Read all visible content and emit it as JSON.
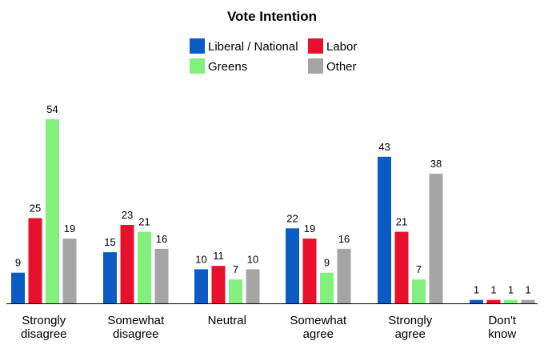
{
  "chart_data": {
    "type": "bar",
    "title": "Vote Intention",
    "legend_position": "top-center",
    "grid": false,
    "ylim": [
      0,
      60
    ],
    "categories": [
      [
        "Strongly",
        "disagree"
      ],
      [
        "Somewhat",
        "disagree"
      ],
      [
        "Neutral"
      ],
      [
        "Somewhat",
        "agree"
      ],
      [
        "Strongly",
        "agree"
      ],
      [
        "Don't",
        "know"
      ]
    ],
    "series": [
      {
        "name": "Liberal / National",
        "color": "#0a5bc4",
        "values": [
          9,
          15,
          10,
          22,
          43,
          1
        ]
      },
      {
        "name": "Labor",
        "color": "#e8112d",
        "values": [
          25,
          23,
          11,
          19,
          21,
          1
        ]
      },
      {
        "name": "Greens",
        "color": "#82f07c",
        "values": [
          54,
          21,
          7,
          9,
          7,
          1
        ]
      },
      {
        "name": "Other",
        "color": "#a5a5a5",
        "values": [
          19,
          16,
          10,
          16,
          38,
          1
        ]
      }
    ]
  }
}
